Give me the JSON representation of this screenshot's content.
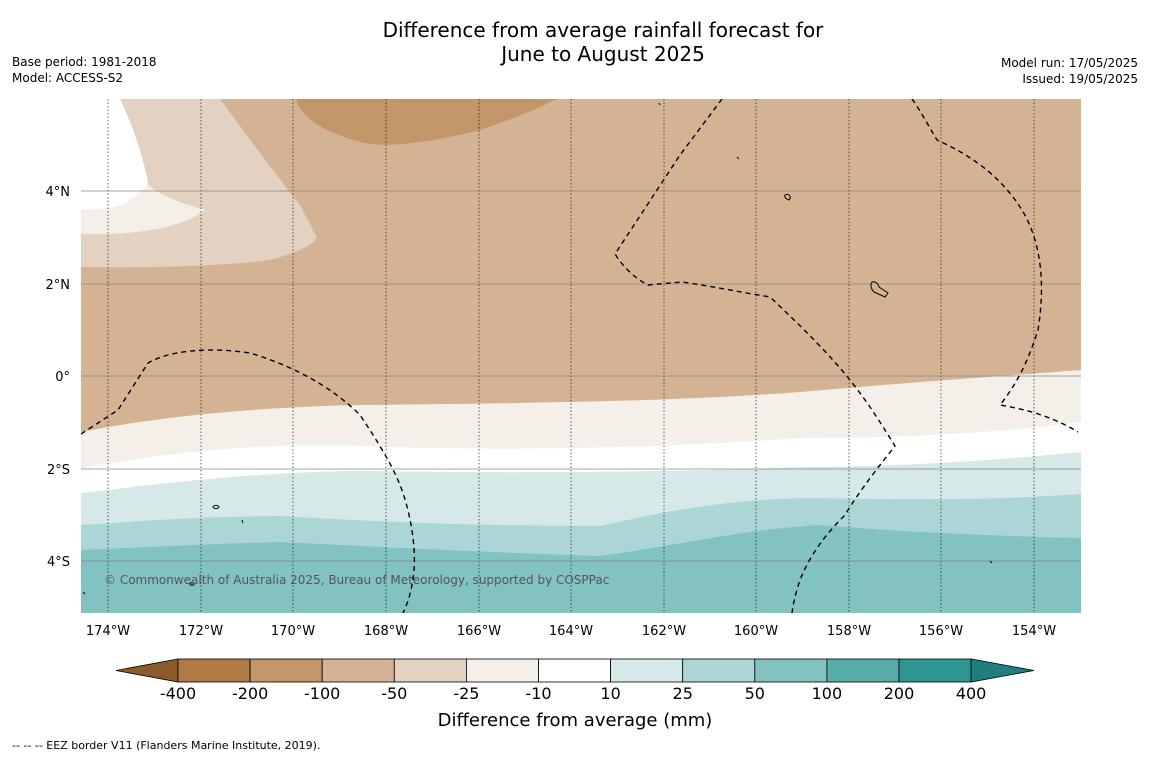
{
  "title_line1": "Difference from average rainfall forecast for",
  "title_line2": "June to August 2025",
  "base_period": "Base period: 1981-2018",
  "model": "Model: ACCESS-S2",
  "model_run": "Model run: 17/05/2025",
  "issued": "Issued: 19/05/2025",
  "copyright": "© Commonwealth of Australia 2025, Bureau of Meteorology, supported by COSPPac",
  "footer_note": "--  --  -- EEZ border V11 (Flanders Marine Institute, 2019).",
  "colorbar": {
    "label": "Difference from average (mm)",
    "ticks": [
      "-400",
      "-200",
      "-100",
      "-50",
      "-25",
      "-10",
      "10",
      "25",
      "50",
      "100",
      "200",
      "400"
    ],
    "colors": [
      "#8d5b2b",
      "#b07a45",
      "#c29669",
      "#d4b394",
      "#e3d2c2",
      "#f5efea",
      "#ffffff",
      "#d6e9e8",
      "#acd6d5",
      "#82c2c0",
      "#57aba9",
      "#2f9593",
      "#207e7c"
    ]
  },
  "map": {
    "lon_labels": [
      "174°W",
      "172°W",
      "170°W",
      "168°W",
      "166°W",
      "164°W",
      "162°W",
      "160°W",
      "158°W",
      "156°W",
      "154°W"
    ],
    "lat_labels": [
      "4°N",
      "2°N",
      "0°",
      "2°S",
      "4°S"
    ],
    "lon_range": [
      "174.6°W",
      "152.9°W"
    ],
    "lat_range": [
      "5.2°S",
      "6.0°N"
    ]
  }
}
